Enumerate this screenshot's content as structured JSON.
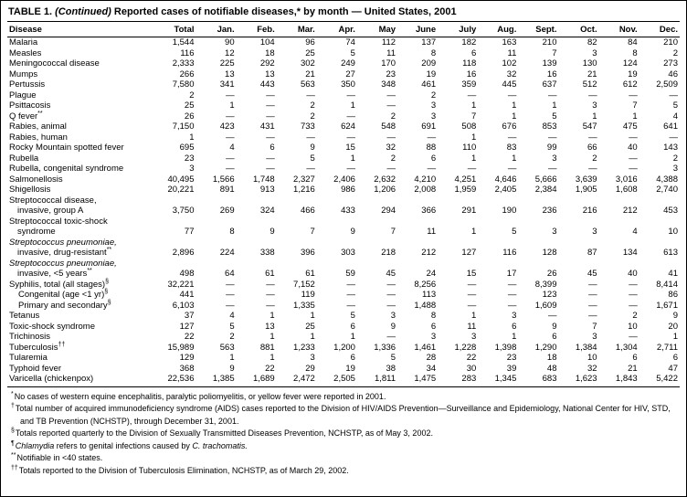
{
  "title": {
    "prefix": "TABLE 1.",
    "continued": "(Continued)",
    "rest": "Reported cases of notifiable diseases,* by month — United States, 2001"
  },
  "table": {
    "columns": [
      "Disease",
      "Total",
      "Jan.",
      "Feb.",
      "Mar.",
      "Apr.",
      "May",
      "June",
      "July",
      "Aug.",
      "Sept.",
      "Oct.",
      "Nov.",
      "Dec."
    ],
    "rows": [
      {
        "lines": [
          {
            "text": "Malaria"
          }
        ],
        "values": [
          "1,544",
          "90",
          "104",
          "96",
          "74",
          "112",
          "137",
          "182",
          "163",
          "210",
          "82",
          "84",
          "210"
        ]
      },
      {
        "lines": [
          {
            "text": "Measles"
          }
        ],
        "values": [
          "116",
          "12",
          "18",
          "25",
          "5",
          "11",
          "8",
          "6",
          "11",
          "7",
          "3",
          "8",
          "2"
        ]
      },
      {
        "lines": [
          {
            "text": "Meningococcal disease"
          }
        ],
        "values": [
          "2,333",
          "225",
          "292",
          "302",
          "249",
          "170",
          "209",
          "118",
          "102",
          "139",
          "130",
          "124",
          "273"
        ]
      },
      {
        "lines": [
          {
            "text": "Mumps"
          }
        ],
        "values": [
          "266",
          "13",
          "13",
          "21",
          "27",
          "23",
          "19",
          "16",
          "32",
          "16",
          "21",
          "19",
          "46"
        ]
      },
      {
        "lines": [
          {
            "text": "Pertussis"
          }
        ],
        "values": [
          "7,580",
          "341",
          "443",
          "563",
          "350",
          "348",
          "461",
          "359",
          "445",
          "637",
          "512",
          "612",
          "2,509"
        ]
      },
      {
        "lines": [
          {
            "text": "Plague"
          }
        ],
        "values": [
          "2",
          "—",
          "—",
          "—",
          "—",
          "—",
          "2",
          "—",
          "—",
          "—",
          "—",
          "—",
          "—"
        ]
      },
      {
        "lines": [
          {
            "text": "Psittacosis"
          }
        ],
        "values": [
          "25",
          "1",
          "—",
          "2",
          "1",
          "—",
          "3",
          "1",
          "1",
          "1",
          "3",
          "7",
          "5"
        ]
      },
      {
        "lines": [
          {
            "text": "Q fever",
            "sup": "**"
          }
        ],
        "values": [
          "26",
          "—",
          "—",
          "2",
          "—",
          "2",
          "3",
          "7",
          "1",
          "5",
          "1",
          "1",
          "4"
        ]
      },
      {
        "lines": [
          {
            "text": "Rabies, animal"
          }
        ],
        "values": [
          "7,150",
          "423",
          "431",
          "733",
          "624",
          "548",
          "691",
          "508",
          "676",
          "853",
          "547",
          "475",
          "641"
        ]
      },
      {
        "lines": [
          {
            "text": "Rabies, human"
          }
        ],
        "values": [
          "1",
          "—",
          "—",
          "—",
          "—",
          "—",
          "—",
          "1",
          "—",
          "—",
          "—",
          "—",
          "—"
        ]
      },
      {
        "lines": [
          {
            "text": "Rocky Mountain spotted fever"
          }
        ],
        "values": [
          "695",
          "4",
          "6",
          "9",
          "15",
          "32",
          "88",
          "110",
          "83",
          "99",
          "66",
          "40",
          "143"
        ]
      },
      {
        "lines": [
          {
            "text": "Rubella"
          }
        ],
        "values": [
          "23",
          "—",
          "—",
          "5",
          "1",
          "2",
          "6",
          "1",
          "1",
          "3",
          "2",
          "—",
          "2"
        ]
      },
      {
        "lines": [
          {
            "text": "Rubella, congenital syndrome"
          }
        ],
        "values": [
          "3",
          "—",
          "—",
          "—",
          "—",
          "—",
          "—",
          "—",
          "—",
          "—",
          "—",
          "—",
          "3"
        ]
      },
      {
        "lines": [
          {
            "text": "Salmonellosis"
          }
        ],
        "values": [
          "40,495",
          "1,566",
          "1,748",
          "2,327",
          "2,406",
          "2,632",
          "4,210",
          "4,251",
          "4,646",
          "5,666",
          "3,639",
          "3,016",
          "4,388"
        ]
      },
      {
        "lines": [
          {
            "text": "Shigellosis"
          }
        ],
        "values": [
          "20,221",
          "891",
          "913",
          "1,216",
          "986",
          "1,206",
          "2,008",
          "1,959",
          "2,405",
          "2,384",
          "1,905",
          "1,608",
          "2,740"
        ]
      },
      {
        "lines": [
          {
            "text": "Streptococcal disease,"
          },
          {
            "text": "invasive, group A"
          }
        ],
        "values": [
          "3,750",
          "269",
          "324",
          "466",
          "433",
          "294",
          "366",
          "291",
          "190",
          "236",
          "216",
          "212",
          "453"
        ]
      },
      {
        "lines": [
          {
            "text": "Streptococcal toxic-shock"
          },
          {
            "text": "syndrome"
          }
        ],
        "values": [
          "77",
          "8",
          "9",
          "7",
          "9",
          "7",
          "11",
          "1",
          "5",
          "3",
          "3",
          "4",
          "10"
        ]
      },
      {
        "lines": [
          {
            "text": "Streptococcus pneumoniae,",
            "italic": true
          },
          {
            "text": "invasive, drug-resistant",
            "sup": "**"
          }
        ],
        "values": [
          "2,896",
          "224",
          "338",
          "396",
          "303",
          "218",
          "212",
          "127",
          "116",
          "128",
          "87",
          "134",
          "613"
        ]
      },
      {
        "lines": [
          {
            "text": "Streptococcus pneumoniae,",
            "italic": true
          },
          {
            "text": "invasive, <5 years",
            "sup": "**"
          }
        ],
        "values": [
          "498",
          "64",
          "61",
          "61",
          "59",
          "45",
          "24",
          "15",
          "17",
          "26",
          "45",
          "40",
          "41"
        ]
      },
      {
        "lines": [
          {
            "text": "Syphilis, total (all stages)",
            "sup": "§"
          }
        ],
        "values": [
          "32,221",
          "—",
          "—",
          "7,152",
          "—",
          "—",
          "8,256",
          "—",
          "—",
          "8,399",
          "—",
          "—",
          "8,414"
        ]
      },
      {
        "indent": 1,
        "lines": [
          {
            "text": "Congenital (age <1 yr)",
            "sup": "§"
          }
        ],
        "values": [
          "441",
          "—",
          "—",
          "119",
          "—",
          "—",
          "113",
          "—",
          "—",
          "123",
          "—",
          "—",
          "86"
        ]
      },
      {
        "indent": 1,
        "lines": [
          {
            "text": "Primary and secondary",
            "sup": "§"
          }
        ],
        "values": [
          "6,103",
          "—",
          "—",
          "1,335",
          "—",
          "—",
          "1,488",
          "—",
          "—",
          "1,609",
          "—",
          "—",
          "1,671"
        ]
      },
      {
        "lines": [
          {
            "text": "Tetanus"
          }
        ],
        "values": [
          "37",
          "4",
          "1",
          "1",
          "5",
          "3",
          "8",
          "1",
          "3",
          "—",
          "—",
          "2",
          "9"
        ]
      },
      {
        "lines": [
          {
            "text": "Toxic-shock syndrome"
          }
        ],
        "values": [
          "127",
          "5",
          "13",
          "25",
          "6",
          "9",
          "6",
          "11",
          "6",
          "9",
          "7",
          "10",
          "20"
        ]
      },
      {
        "lines": [
          {
            "text": "Trichinosis"
          }
        ],
        "values": [
          "22",
          "2",
          "1",
          "1",
          "1",
          "—",
          "3",
          "3",
          "1",
          "6",
          "3",
          "—",
          "1"
        ]
      },
      {
        "lines": [
          {
            "text": "Tuberculosis",
            "sup": "††"
          }
        ],
        "values": [
          "15,989",
          "563",
          "881",
          "1,233",
          "1,200",
          "1,336",
          "1,461",
          "1,228",
          "1,398",
          "1,290",
          "1,384",
          "1,304",
          "2,711"
        ]
      },
      {
        "lines": [
          {
            "text": "Tularemia"
          }
        ],
        "values": [
          "129",
          "1",
          "1",
          "3",
          "6",
          "5",
          "28",
          "22",
          "23",
          "18",
          "10",
          "6",
          "6"
        ]
      },
      {
        "lines": [
          {
            "text": "Typhoid fever"
          }
        ],
        "values": [
          "368",
          "9",
          "22",
          "29",
          "19",
          "38",
          "34",
          "30",
          "39",
          "48",
          "32",
          "21",
          "47"
        ]
      },
      {
        "lines": [
          {
            "text": "Varicella (chickenpox)"
          }
        ],
        "values": [
          "22,536",
          "1,385",
          "1,689",
          "2,472",
          "2,505",
          "1,811",
          "1,475",
          "283",
          "1,345",
          "683",
          "1,623",
          "1,843",
          "5,422"
        ]
      }
    ]
  },
  "footnotes": [
    {
      "mark": "*",
      "parts": [
        {
          "text": "No cases of western equine encephalitis, paralytic poliomyelitis, or yellow fever were reported in 2001."
        }
      ]
    },
    {
      "mark": "†",
      "parts": [
        {
          "text": "Total number of acquired immunodeficiency syndrome (AIDS) cases reported to the Division of HIV/AIDS Prevention—Surveillance and Epidemiology, National Center for HIV, STD, and TB Prevention (NCHSTP), through December 31, 2001."
        }
      ]
    },
    {
      "mark": "§",
      "parts": [
        {
          "text": "Totals reported quarterly to the Division of Sexually Transmitted Diseases Prevention, NCHSTP, as of May 3, 2002."
        }
      ]
    },
    {
      "mark": "¶",
      "parts": [
        {
          "text": "Chlamydia",
          "italic": true
        },
        {
          "text": " refers to genital infections caused by "
        },
        {
          "text": "C. trachomatis.",
          "italic": true
        }
      ]
    },
    {
      "mark": "**",
      "parts": [
        {
          "text": "Notifiable in <40 states."
        }
      ]
    },
    {
      "mark": "††",
      "parts": [
        {
          "text": "Totals reported to the Division of Tuberculosis Elimination, NCHSTP, as of March 29, 2002."
        }
      ]
    }
  ]
}
